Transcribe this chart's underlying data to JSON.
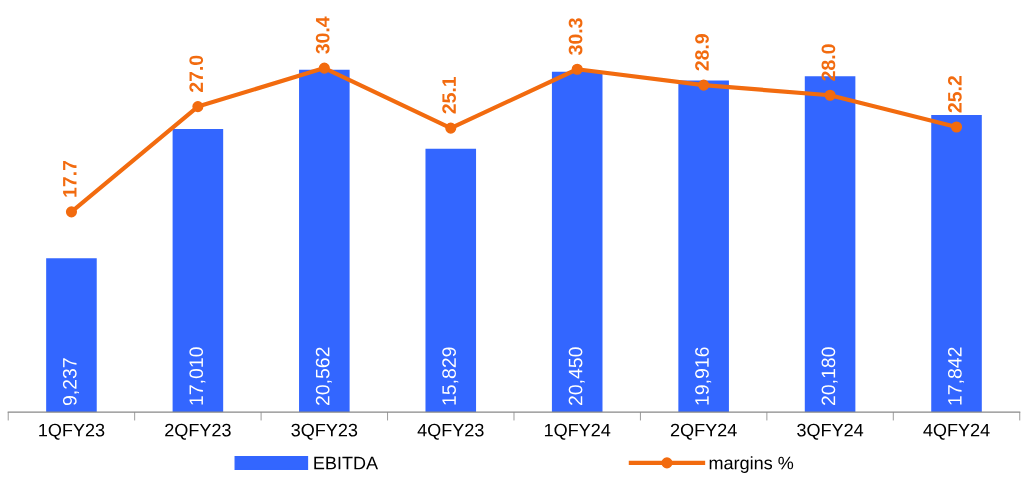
{
  "chart_data": {
    "type": "bar",
    "categories": [
      "1QFY23",
      "2QFY23",
      "3QFY23",
      "4QFY23",
      "1QFY24",
      "2QFY24",
      "3QFY24",
      "4QFY24"
    ],
    "series": [
      {
        "name": "EBITDA",
        "color": "#3366ff",
        "values": [
          9237,
          17010,
          20562,
          15829,
          20450,
          19916,
          20180,
          17842
        ],
        "value_labels": [
          "9,237",
          "17,010",
          "20,562",
          "15,829",
          "20,450",
          "19,916",
          "20,180",
          "17,842"
        ]
      },
      {
        "name": "margins %",
        "type": "line",
        "axis": "y2",
        "color": "#f26b0f",
        "marker": "circle",
        "values": [
          17.7,
          27.0,
          30.4,
          25.1,
          30.3,
          28.9,
          28.0,
          25.2
        ],
        "value_labels": [
          "17.7",
          "27.0",
          "30.4",
          "25.1",
          "30.3",
          "28.9",
          "28.0",
          "25.2"
        ]
      }
    ],
    "tick_labels": "x",
    "legend": "bottom"
  }
}
